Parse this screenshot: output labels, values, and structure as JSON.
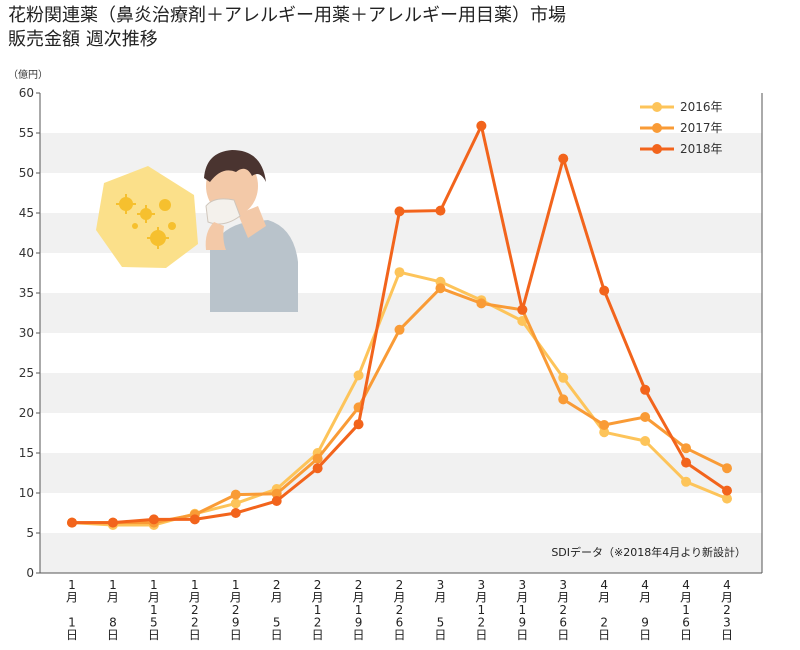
{
  "chart_data": {
    "type": "line",
    "title_line1": "花粉関連薬（鼻炎治療剤＋アレルギー用薬＋アレルギー用目薬）市場",
    "title_line2": "販売金額 週次推移",
    "y_unit": "（億円）",
    "ylim": [
      0,
      60
    ],
    "y_ticks": [
      0,
      5,
      10,
      15,
      20,
      25,
      30,
      35,
      40,
      45,
      50,
      55,
      60
    ],
    "grid": "alternating horizontal bands",
    "legend_position": "top-right",
    "categories": [
      "1月1日",
      "1月8日",
      "1月15日",
      "1月22日",
      "1月29日",
      "2月5日",
      "2月12日",
      "2月19日",
      "2月26日",
      "3月5日",
      "3月12日",
      "3月19日",
      "3月26日",
      "4月2日",
      "4月9日",
      "4月16日",
      "4月23日"
    ],
    "category_lines": [
      [
        "1",
        "月",
        "",
        "1",
        "日"
      ],
      [
        "1",
        "月",
        "",
        "8",
        "日"
      ],
      [
        "1",
        "月",
        "1",
        "5",
        "日"
      ],
      [
        "1",
        "月",
        "2",
        "2",
        "日"
      ],
      [
        "1",
        "月",
        "2",
        "9",
        "日"
      ],
      [
        "2",
        "月",
        "",
        "5",
        "日"
      ],
      [
        "2",
        "月",
        "1",
        "2",
        "日"
      ],
      [
        "2",
        "月",
        "1",
        "9",
        "日"
      ],
      [
        "2",
        "月",
        "2",
        "6",
        "日"
      ],
      [
        "3",
        "月",
        "",
        "5",
        "日"
      ],
      [
        "3",
        "月",
        "1",
        "2",
        "日"
      ],
      [
        "3",
        "月",
        "1",
        "9",
        "日"
      ],
      [
        "3",
        "月",
        "2",
        "6",
        "日"
      ],
      [
        "4",
        "月",
        "",
        "2",
        "日"
      ],
      [
        "4",
        "月",
        "",
        "9",
        "日"
      ],
      [
        "4",
        "月",
        "1",
        "6",
        "日"
      ],
      [
        "4",
        "月",
        "2",
        "3",
        "日"
      ]
    ],
    "series": [
      {
        "name": "2016年",
        "color": "#FDC45A",
        "values": [
          6.3,
          6.0,
          6.0,
          7.4,
          8.7,
          10.5,
          15.0,
          24.7,
          37.6,
          36.4,
          34.1,
          31.5,
          24.4,
          17.6,
          16.5,
          11.4,
          9.3
        ]
      },
      {
        "name": "2017年",
        "color": "#F99B36",
        "values": [
          6.3,
          6.3,
          6.3,
          7.3,
          9.8,
          9.9,
          14.3,
          20.7,
          30.4,
          35.6,
          33.7,
          32.9,
          21.7,
          18.5,
          19.5,
          15.6,
          13.1
        ]
      },
      {
        "name": "2018年",
        "color": "#F2641C",
        "values": [
          6.3,
          6.3,
          6.7,
          6.7,
          7.5,
          9.0,
          13.1,
          18.6,
          45.2,
          45.3,
          55.9,
          32.9,
          51.8,
          35.3,
          22.9,
          13.8,
          10.3
        ]
      }
    ],
    "source_note": "SDIデータ（※2018年4月より新設計）"
  }
}
